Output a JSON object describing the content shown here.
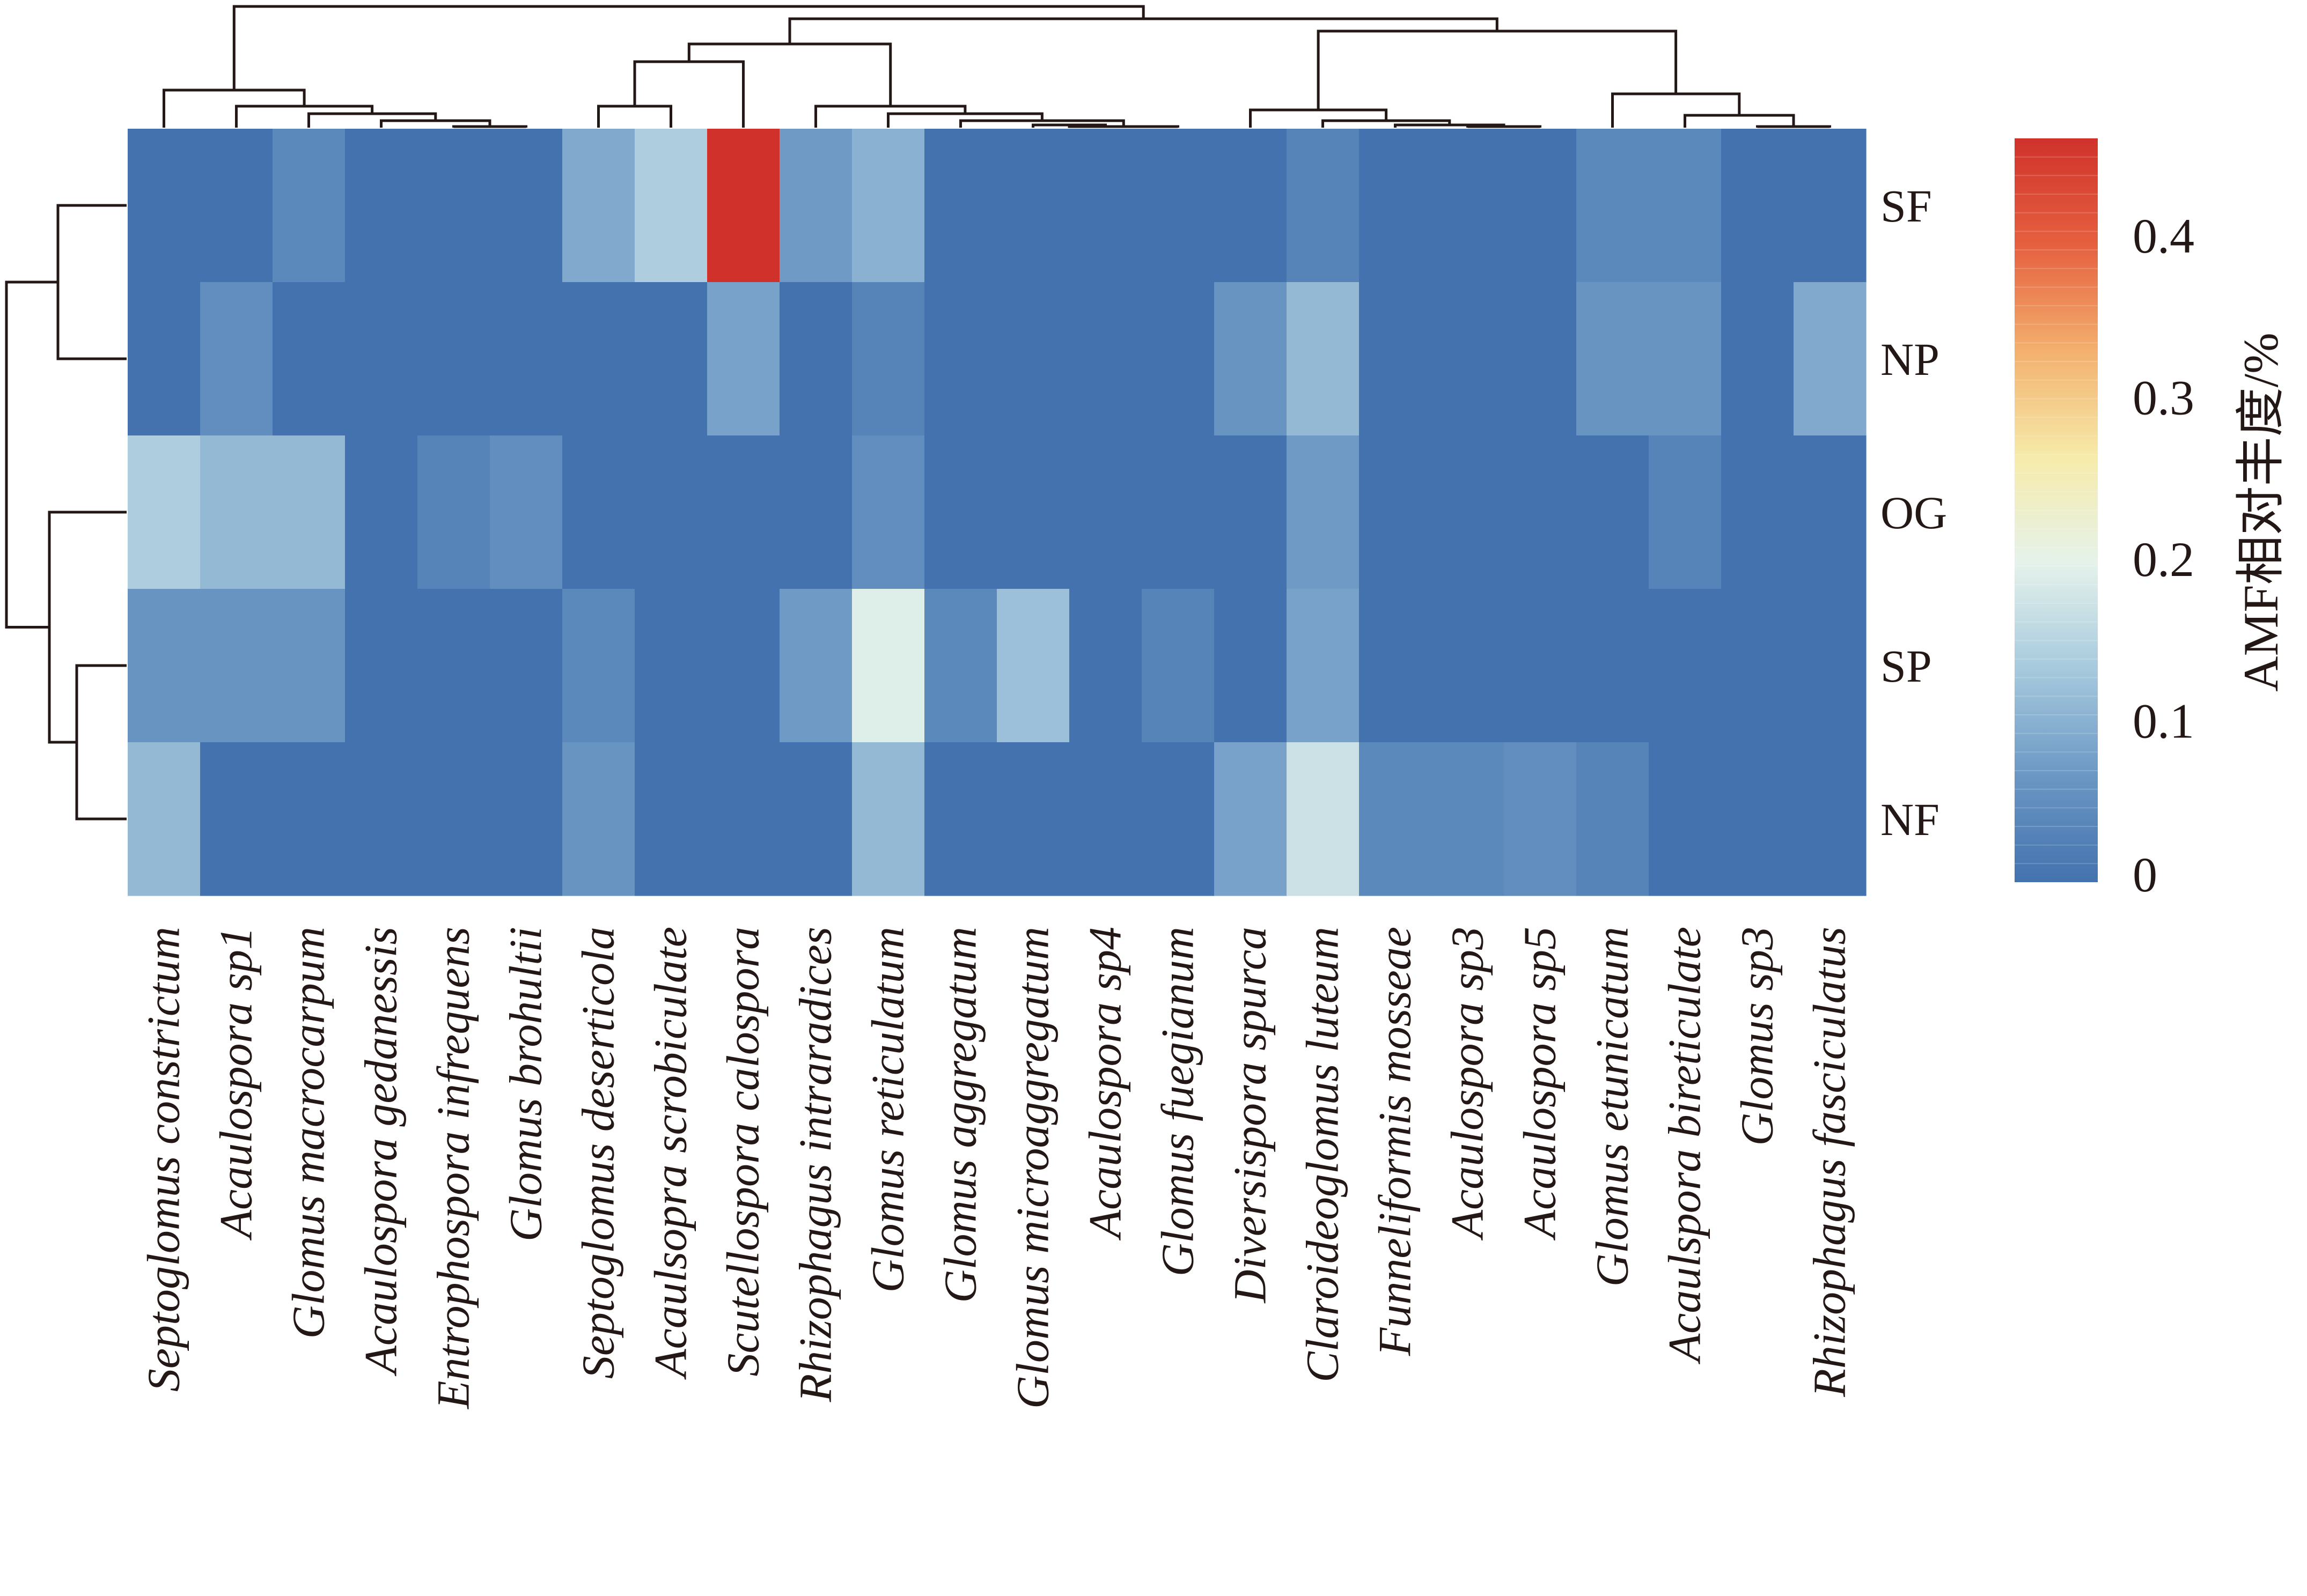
{
  "chart_data": {
    "type": "heatmap",
    "title": "",
    "rows": [
      "SF",
      "NP",
      "OG",
      "SP",
      "NF"
    ],
    "columns": [
      "Septoglomus constrictum",
      "Acaulospora sp1",
      "Glomus macrocarpum",
      "Acaulospora gedanessis",
      "Entrophospora infrequens",
      "Glomus brohultii",
      "Septoglomus deserticola",
      "Acaulsopra scrobiculate",
      "Scutellospora calospora",
      "Rhizophagus intraradices",
      "Glomus reticulatum",
      "Glomus aggregatum",
      "Glomus microaggregatum",
      "Acaulospora sp4",
      "Glomus fuegianum",
      "Diversispora spurca",
      "Claroideoglomus luteum",
      "Funneliformis mosseae",
      "Acaulospora sp3",
      "Acaulospora sp5",
      "Glomus etunicatum",
      "Acaulspora bireticulate",
      "Glomus sp3",
      "Rhizophagus fasciculatus"
    ],
    "values": [
      [
        0.0,
        0.0,
        0.04,
        0.0,
        0.0,
        0.0,
        0.09,
        0.14,
        0.46,
        0.07,
        0.1,
        0.0,
        0.0,
        0.0,
        0.0,
        0.0,
        0.03,
        0.0,
        0.0,
        0.0,
        0.04,
        0.04,
        0.0,
        0.0
      ],
      [
        0.0,
        0.05,
        0.0,
        0.0,
        0.0,
        0.0,
        0.0,
        0.0,
        0.08,
        0.0,
        0.03,
        0.0,
        0.0,
        0.0,
        0.0,
        0.06,
        0.11,
        0.0,
        0.0,
        0.0,
        0.06,
        0.06,
        0.0,
        0.09
      ],
      [
        0.14,
        0.11,
        0.11,
        0.0,
        0.03,
        0.05,
        0.0,
        0.0,
        0.0,
        0.0,
        0.05,
        0.0,
        0.0,
        0.0,
        0.0,
        0.0,
        0.07,
        0.0,
        0.0,
        0.0,
        0.0,
        0.03,
        0.0,
        0.0
      ],
      [
        0.06,
        0.06,
        0.06,
        0.0,
        0.0,
        0.0,
        0.04,
        0.0,
        0.0,
        0.07,
        0.19,
        0.04,
        0.12,
        0.0,
        0.03,
        0.0,
        0.08,
        0.0,
        0.0,
        0.0,
        0.0,
        0.0,
        0.0,
        0.0
      ],
      [
        0.11,
        0.0,
        0.0,
        0.0,
        0.0,
        0.0,
        0.06,
        0.0,
        0.0,
        0.0,
        0.11,
        0.0,
        0.0,
        0.0,
        0.0,
        0.08,
        0.17,
        0.04,
        0.04,
        0.05,
        0.03,
        0.0,
        0.0,
        0.0
      ]
    ],
    "color_range": [
      0,
      0.46
    ],
    "colorbar": {
      "label": "AMF相对丰度/%",
      "ticks": [
        0,
        0.1,
        0.2,
        0.3,
        0.4
      ],
      "tick_labels": [
        "0",
        "0.1",
        "0.2",
        "0.3",
        "0.4"
      ],
      "colors": [
        "#4472ae",
        "#6b97c4",
        "#a6c9dd",
        "#e5f2eb",
        "#f6ebaa",
        "#f3b06e",
        "#e5603f",
        "#d0322b"
      ]
    },
    "row_dendrogram": "left",
    "column_dendrogram": "top"
  }
}
